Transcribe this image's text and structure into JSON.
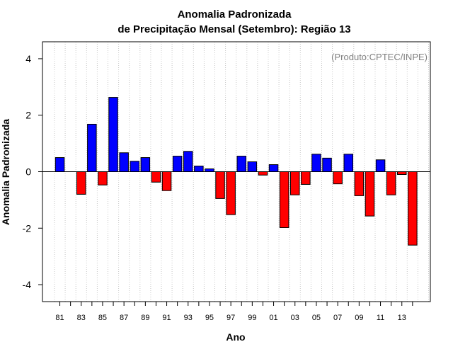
{
  "chart_data": {
    "type": "bar",
    "title_line1": "Anomalia Padronizada",
    "title_line2": "de Precipitação Mensal (Setembro): Região 13",
    "xlabel": "Ano",
    "ylabel": "Anomalia Padronizada",
    "credit": "(Produto:CPTEC/INPE)",
    "ylim": [
      -4.6,
      4.6
    ],
    "yticks": [
      -4,
      -2,
      0,
      2,
      4
    ],
    "grid": "vertical-dotted",
    "categories": [
      "81",
      "82",
      "83",
      "84",
      "85",
      "86",
      "87",
      "88",
      "89",
      "90",
      "91",
      "92",
      "93",
      "94",
      "95",
      "96",
      "97",
      "98",
      "99",
      "00",
      "01",
      "02",
      "03",
      "04",
      "05",
      "06",
      "07",
      "08",
      "09",
      "10",
      "11",
      "12",
      "13",
      "14"
    ],
    "xtick_labels": [
      "81",
      "83",
      "85",
      "87",
      "89",
      "91",
      "93",
      "95",
      "97",
      "99",
      "01",
      "03",
      "05",
      "07",
      "09",
      "11",
      "13"
    ],
    "values": [
      0.5,
      0,
      -0.8,
      1.68,
      -0.47,
      2.63,
      0.67,
      0.37,
      0.5,
      -0.37,
      -0.67,
      0.55,
      0.72,
      0.2,
      0.1,
      -0.95,
      -1.52,
      0.55,
      0.35,
      -0.12,
      0.25,
      -1.98,
      -0.82,
      -0.45,
      0.62,
      0.48,
      -0.43,
      0.62,
      -0.85,
      -1.57,
      0.42,
      -0.82,
      -0.1,
      -2.6
    ],
    "colors": {
      "positive": "#0000ff",
      "negative": "#ff0000",
      "credit": "#808080",
      "grid": "#c8c8c8"
    }
  }
}
